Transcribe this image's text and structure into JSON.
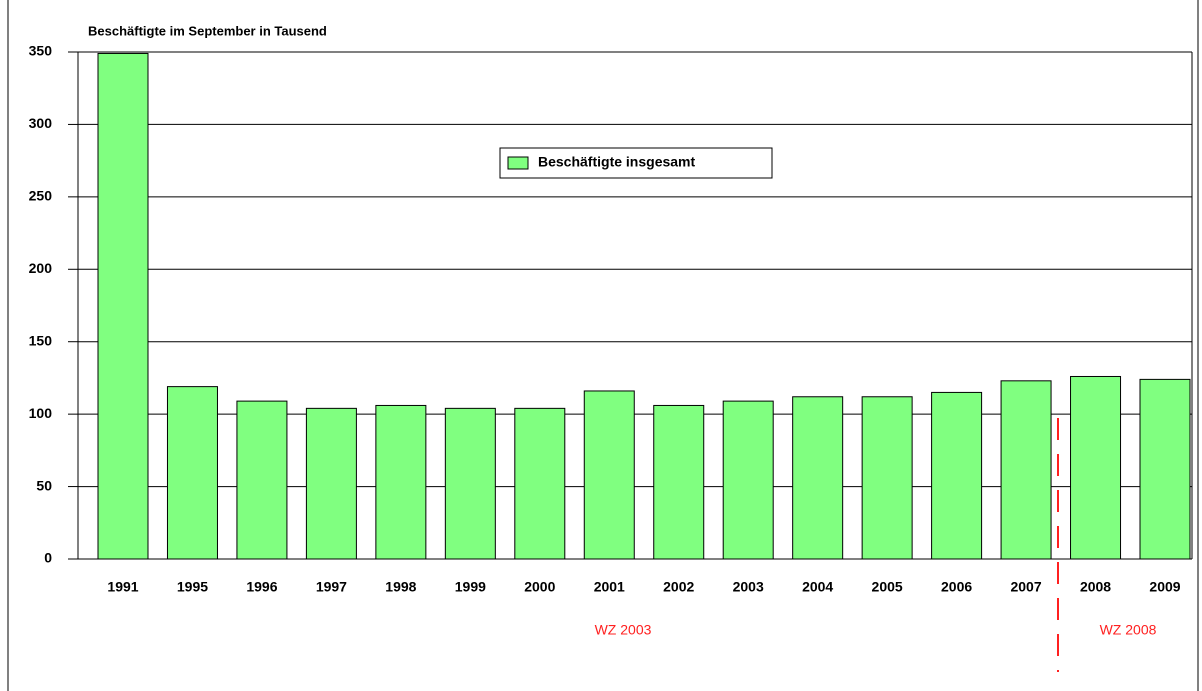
{
  "chart_data": {
    "type": "bar",
    "title": "Beschäftigte im September in Tausend",
    "categories": [
      "1991",
      "1995",
      "1996",
      "1997",
      "1998",
      "1999",
      "2000",
      "2001",
      "2002",
      "2003",
      "2004",
      "2005",
      "2006",
      "2007",
      "2008",
      "2009"
    ],
    "series": [
      {
        "name": "Beschäftigte insgesamt",
        "color": "#80ff80",
        "values": [
          349,
          119,
          109,
          104,
          106,
          104,
          104,
          116,
          106,
          109,
          112,
          112,
          115,
          123,
          126,
          124
        ]
      }
    ],
    "ylim": [
      0,
      350
    ],
    "yticks": [
      0,
      50,
      100,
      150,
      200,
      250,
      300,
      350
    ],
    "grid": true,
    "annotations": [
      "WZ 2003",
      "WZ 2008"
    ]
  }
}
